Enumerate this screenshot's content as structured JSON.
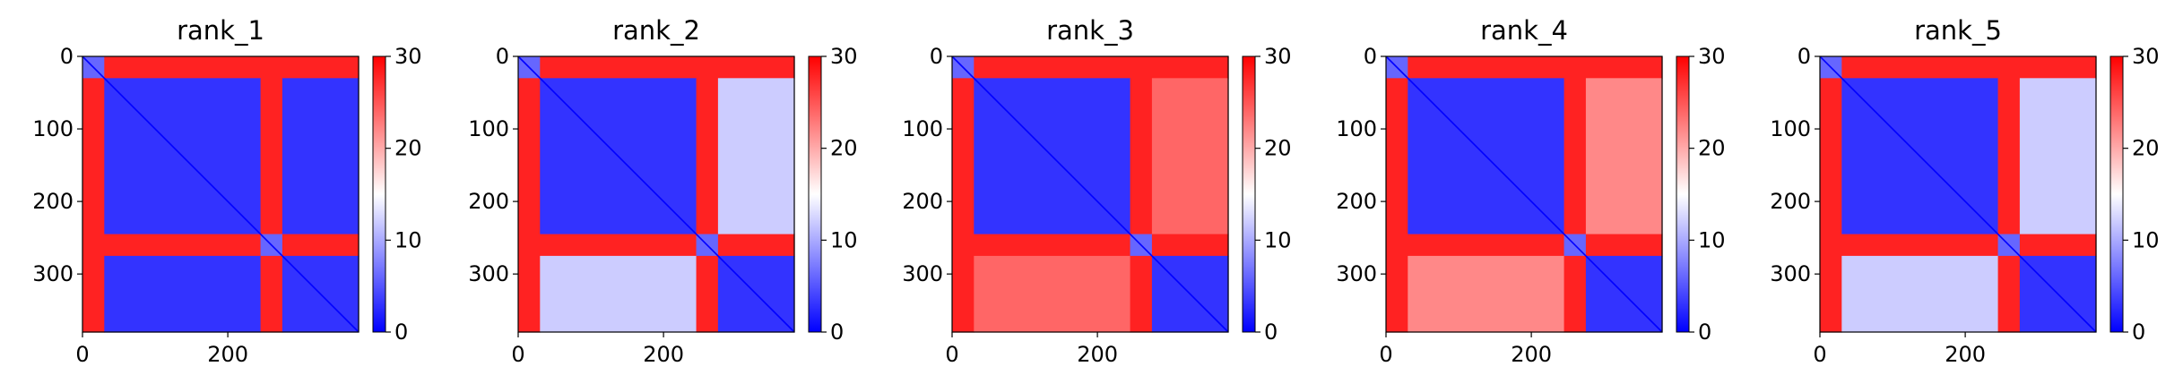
{
  "chart_data": [
    {
      "type": "heatmap",
      "title": "rank_1",
      "x_ticks": [
        "0",
        "200"
      ],
      "y_ticks": [
        "0",
        "100",
        "200",
        "300"
      ],
      "matrix_size": 380,
      "domains": [
        [
          0,
          30
        ],
        [
          30,
          245
        ],
        [
          245,
          275
        ],
        [
          275,
          380
        ]
      ],
      "block_levels": [
        [
          6,
          28,
          28,
          28
        ],
        [
          28,
          3,
          28,
          3
        ],
        [
          28,
          28,
          6,
          28
        ],
        [
          28,
          3,
          28,
          3
        ]
      ],
      "colorbar": {
        "min": 0,
        "max": 30,
        "ticks": [
          "0",
          "10",
          "20",
          "30"
        ],
        "cmap": [
          "#0000ff",
          "#ffffff",
          "#ff0000"
        ]
      }
    },
    {
      "type": "heatmap",
      "title": "rank_2",
      "x_ticks": [
        "0",
        "200"
      ],
      "y_ticks": [
        "0",
        "100",
        "200",
        "300"
      ],
      "matrix_size": 380,
      "domains": [
        [
          0,
          30
        ],
        [
          30,
          245
        ],
        [
          245,
          275
        ],
        [
          275,
          380
        ]
      ],
      "block_levels": [
        [
          6,
          28,
          28,
          28
        ],
        [
          28,
          3,
          28,
          12
        ],
        [
          28,
          28,
          6,
          28
        ],
        [
          28,
          12,
          28,
          3
        ]
      ],
      "colorbar": {
        "min": 0,
        "max": 30,
        "ticks": [
          "0",
          "10",
          "20",
          "30"
        ],
        "cmap": [
          "#0000ff",
          "#ffffff",
          "#ff0000"
        ]
      }
    },
    {
      "type": "heatmap",
      "title": "rank_3",
      "x_ticks": [
        "0",
        "200"
      ],
      "y_ticks": [
        "0",
        "100",
        "200",
        "300"
      ],
      "matrix_size": 380,
      "domains": [
        [
          0,
          30
        ],
        [
          30,
          245
        ],
        [
          245,
          275
        ],
        [
          275,
          380
        ]
      ],
      "block_levels": [
        [
          6,
          28,
          28,
          28
        ],
        [
          28,
          3,
          28,
          24
        ],
        [
          28,
          28,
          6,
          28
        ],
        [
          28,
          24,
          28,
          3
        ]
      ],
      "colorbar": {
        "min": 0,
        "max": 30,
        "ticks": [
          "0",
          "10",
          "20",
          "30"
        ],
        "cmap": [
          "#0000ff",
          "#ffffff",
          "#ff0000"
        ]
      }
    },
    {
      "type": "heatmap",
      "title": "rank_4",
      "x_ticks": [
        "0",
        "200"
      ],
      "y_ticks": [
        "0",
        "100",
        "200",
        "300"
      ],
      "matrix_size": 380,
      "domains": [
        [
          0,
          30
        ],
        [
          30,
          245
        ],
        [
          245,
          275
        ],
        [
          275,
          380
        ]
      ],
      "block_levels": [
        [
          6,
          28,
          28,
          28
        ],
        [
          28,
          3,
          28,
          22
        ],
        [
          28,
          28,
          6,
          28
        ],
        [
          28,
          22,
          28,
          3
        ]
      ],
      "colorbar": {
        "min": 0,
        "max": 30,
        "ticks": [
          "0",
          "10",
          "20",
          "30"
        ],
        "cmap": [
          "#0000ff",
          "#ffffff",
          "#ff0000"
        ]
      }
    },
    {
      "type": "heatmap",
      "title": "rank_5",
      "x_ticks": [
        "0",
        "200"
      ],
      "y_ticks": [
        "0",
        "100",
        "200",
        "300"
      ],
      "matrix_size": 380,
      "domains": [
        [
          0,
          30
        ],
        [
          30,
          245
        ],
        [
          245,
          275
        ],
        [
          275,
          380
        ]
      ],
      "block_levels": [
        [
          6,
          28,
          28,
          28
        ],
        [
          28,
          3,
          28,
          12
        ],
        [
          28,
          28,
          6,
          28
        ],
        [
          28,
          12,
          28,
          3
        ]
      ],
      "colorbar": {
        "min": 0,
        "max": 30,
        "ticks": [
          "0",
          "10",
          "20",
          "30"
        ],
        "cmap": [
          "#0000ff",
          "#ffffff",
          "#ff0000"
        ]
      }
    }
  ]
}
